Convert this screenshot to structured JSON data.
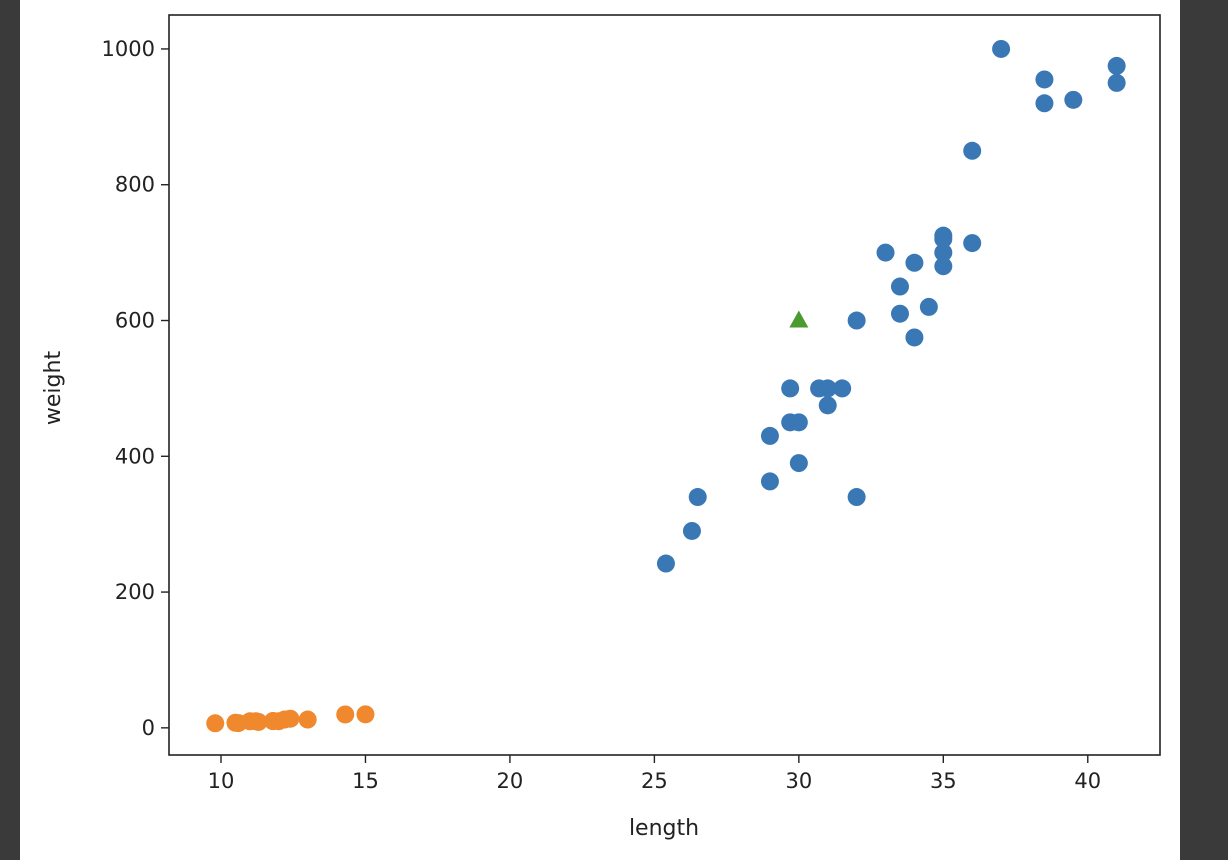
{
  "chart_data": {
    "type": "scatter",
    "title": "",
    "xlabel": "length",
    "ylabel": "weight",
    "xlim": [
      8.2,
      42.5
    ],
    "ylim": [
      -40,
      1050
    ],
    "xticks": [
      10,
      15,
      20,
      25,
      30,
      35,
      40
    ],
    "yticks": [
      0,
      200,
      400,
      600,
      800,
      1000
    ],
    "grid": false,
    "legend": "none",
    "series": [
      {
        "color": "#3a78b5",
        "marker": "circle",
        "points": [
          [
            25.4,
            242
          ],
          [
            26.3,
            290
          ],
          [
            26.5,
            340
          ],
          [
            29.0,
            363
          ],
          [
            29.0,
            430
          ],
          [
            29.7,
            450
          ],
          [
            29.7,
            500
          ],
          [
            30.0,
            390
          ],
          [
            30.0,
            450
          ],
          [
            30.7,
            500
          ],
          [
            31.0,
            475
          ],
          [
            31.0,
            500
          ],
          [
            31.5,
            500
          ],
          [
            32.0,
            340
          ],
          [
            32.0,
            600
          ],
          [
            33.0,
            700
          ],
          [
            33.5,
            610
          ],
          [
            33.5,
            650
          ],
          [
            34.0,
            575
          ],
          [
            34.0,
            685
          ],
          [
            34.5,
            620
          ],
          [
            35.0,
            680
          ],
          [
            35.0,
            700
          ],
          [
            35.0,
            725
          ],
          [
            35.0,
            720
          ],
          [
            36.0,
            714
          ],
          [
            36.0,
            850
          ],
          [
            37.0,
            1000
          ],
          [
            38.5,
            920
          ],
          [
            38.5,
            955
          ],
          [
            39.5,
            925
          ],
          [
            41.0,
            975
          ],
          [
            41.0,
            950
          ]
        ]
      },
      {
        "color": "#f0882e",
        "marker": "circle",
        "points": [
          [
            9.8,
            6.7
          ],
          [
            10.5,
            7.5
          ],
          [
            10.6,
            7.0
          ],
          [
            11.0,
            9.7
          ],
          [
            11.2,
            9.8
          ],
          [
            11.3,
            8.7
          ],
          [
            11.8,
            10.0
          ],
          [
            11.8,
            9.9
          ],
          [
            12.0,
            9.8
          ],
          [
            12.2,
            12.2
          ],
          [
            12.4,
            13.4
          ],
          [
            13.0,
            12.2
          ],
          [
            14.3,
            19.7
          ],
          [
            15.0,
            19.9
          ]
        ]
      },
      {
        "color": "#4a9a2f",
        "marker": "triangle",
        "points": [
          [
            30.0,
            600
          ]
        ]
      }
    ]
  }
}
